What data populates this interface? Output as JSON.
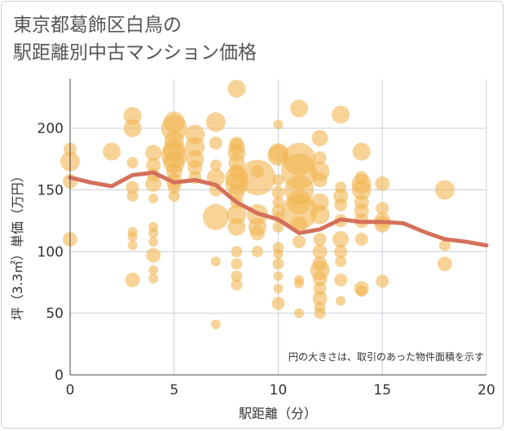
{
  "title": {
    "line1": "東京都葛飾区白鳥の",
    "line2": "駅距離別中古マンション価格"
  },
  "chart_data": {
    "type": "scatter",
    "xlabel": "駅距離（分）",
    "ylabel": "坪（3.3㎡）単価（万円）",
    "xlim": [
      0,
      20
    ],
    "ylim": [
      0,
      240
    ],
    "x_ticks": [
      0,
      5,
      10,
      15,
      20
    ],
    "y_ticks": [
      0,
      50,
      100,
      150,
      200
    ],
    "grid": true,
    "note": "円の大きさは、取引のあった物件面積を示す",
    "colors": {
      "bubble": "#f2b552",
      "line": "#d4705a",
      "grid": "#c9d1dc"
    },
    "bubbles": [
      {
        "x": 0,
        "y": 183,
        "r": 8
      },
      {
        "x": 0,
        "y": 173,
        "r": 12
      },
      {
        "x": 0,
        "y": 157,
        "r": 9
      },
      {
        "x": 0,
        "y": 110,
        "r": 9
      },
      {
        "x": 2,
        "y": 181,
        "r": 11
      },
      {
        "x": 3,
        "y": 210,
        "r": 11
      },
      {
        "x": 3,
        "y": 200,
        "r": 11
      },
      {
        "x": 3,
        "y": 172,
        "r": 7
      },
      {
        "x": 3,
        "y": 152,
        "r": 8
      },
      {
        "x": 3,
        "y": 145,
        "r": 7
      },
      {
        "x": 3,
        "y": 116,
        "r": 6
      },
      {
        "x": 3,
        "y": 112,
        "r": 6
      },
      {
        "x": 3,
        "y": 105,
        "r": 6
      },
      {
        "x": 3,
        "y": 77,
        "r": 9
      },
      {
        "x": 4,
        "y": 180,
        "r": 10
      },
      {
        "x": 4,
        "y": 170,
        "r": 9
      },
      {
        "x": 4,
        "y": 162,
        "r": 8
      },
      {
        "x": 4,
        "y": 155,
        "r": 10
      },
      {
        "x": 4,
        "y": 143,
        "r": 6
      },
      {
        "x": 4,
        "y": 120,
        "r": 6
      },
      {
        "x": 4,
        "y": 115,
        "r": 6
      },
      {
        "x": 4,
        "y": 108,
        "r": 6
      },
      {
        "x": 4,
        "y": 97,
        "r": 9
      },
      {
        "x": 4,
        "y": 85,
        "r": 6
      },
      {
        "x": 4,
        "y": 78,
        "r": 6
      },
      {
        "x": 5,
        "y": 205,
        "r": 13
      },
      {
        "x": 5,
        "y": 200,
        "r": 16
      },
      {
        "x": 5,
        "y": 190,
        "r": 12
      },
      {
        "x": 5,
        "y": 182,
        "r": 14
      },
      {
        "x": 5,
        "y": 178,
        "r": 16
      },
      {
        "x": 5,
        "y": 172,
        "r": 13
      },
      {
        "x": 5,
        "y": 165,
        "r": 10
      },
      {
        "x": 5,
        "y": 157,
        "r": 10
      },
      {
        "x": 5,
        "y": 152,
        "r": 8
      },
      {
        "x": 5,
        "y": 145,
        "r": 7
      },
      {
        "x": 6,
        "y": 195,
        "r": 12
      },
      {
        "x": 6,
        "y": 185,
        "r": 12
      },
      {
        "x": 6,
        "y": 175,
        "r": 11
      },
      {
        "x": 6,
        "y": 168,
        "r": 9
      },
      {
        "x": 6,
        "y": 160,
        "r": 8
      },
      {
        "x": 7,
        "y": 205,
        "r": 12
      },
      {
        "x": 7,
        "y": 188,
        "r": 8
      },
      {
        "x": 7,
        "y": 170,
        "r": 7
      },
      {
        "x": 7,
        "y": 160,
        "r": 11
      },
      {
        "x": 7,
        "y": 150,
        "r": 8
      },
      {
        "x": 7,
        "y": 128,
        "r": 16
      },
      {
        "x": 7,
        "y": 92,
        "r": 6
      },
      {
        "x": 7,
        "y": 41,
        "r": 6
      },
      {
        "x": 8,
        "y": 232,
        "r": 11
      },
      {
        "x": 8,
        "y": 188,
        "r": 8
      },
      {
        "x": 8,
        "y": 185,
        "r": 10
      },
      {
        "x": 8,
        "y": 180,
        "r": 11
      },
      {
        "x": 8,
        "y": 172,
        "r": 10
      },
      {
        "x": 8,
        "y": 165,
        "r": 9
      },
      {
        "x": 8,
        "y": 160,
        "r": 14
      },
      {
        "x": 8,
        "y": 155,
        "r": 14
      },
      {
        "x": 8,
        "y": 148,
        "r": 10
      },
      {
        "x": 8,
        "y": 140,
        "r": 8
      },
      {
        "x": 8,
        "y": 130,
        "r": 12
      },
      {
        "x": 8,
        "y": 120,
        "r": 11
      },
      {
        "x": 8,
        "y": 100,
        "r": 7
      },
      {
        "x": 8,
        "y": 90,
        "r": 7
      },
      {
        "x": 8,
        "y": 80,
        "r": 7
      },
      {
        "x": 8,
        "y": 73,
        "r": 7
      },
      {
        "x": 9,
        "y": 165,
        "r": 8
      },
      {
        "x": 9,
        "y": 160,
        "r": 22
      },
      {
        "x": 9,
        "y": 130,
        "r": 13
      },
      {
        "x": 9,
        "y": 120,
        "r": 11
      },
      {
        "x": 9,
        "y": 115,
        "r": 9
      },
      {
        "x": 9,
        "y": 100,
        "r": 7
      },
      {
        "x": 10,
        "y": 203,
        "r": 6
      },
      {
        "x": 10,
        "y": 180,
        "r": 12
      },
      {
        "x": 10,
        "y": 178,
        "r": 13
      },
      {
        "x": 10,
        "y": 158,
        "r": 7
      },
      {
        "x": 10,
        "y": 148,
        "r": 8
      },
      {
        "x": 10,
        "y": 140,
        "r": 7
      },
      {
        "x": 10,
        "y": 133,
        "r": 8
      },
      {
        "x": 10,
        "y": 128,
        "r": 7
      },
      {
        "x": 10,
        "y": 120,
        "r": 7
      },
      {
        "x": 10,
        "y": 103,
        "r": 7
      },
      {
        "x": 10,
        "y": 98,
        "r": 6
      },
      {
        "x": 10,
        "y": 90,
        "r": 7
      },
      {
        "x": 10,
        "y": 80,
        "r": 6
      },
      {
        "x": 10,
        "y": 70,
        "r": 6
      },
      {
        "x": 10,
        "y": 58,
        "r": 8
      },
      {
        "x": 11,
        "y": 216,
        "r": 11
      },
      {
        "x": 11,
        "y": 175,
        "r": 20
      },
      {
        "x": 11,
        "y": 165,
        "r": 22
      },
      {
        "x": 11,
        "y": 150,
        "r": 18
      },
      {
        "x": 11,
        "y": 140,
        "r": 15
      },
      {
        "x": 11,
        "y": 132,
        "r": 22
      },
      {
        "x": 11,
        "y": 122,
        "r": 10
      },
      {
        "x": 11,
        "y": 108,
        "r": 8
      },
      {
        "x": 11,
        "y": 77,
        "r": 6
      },
      {
        "x": 11,
        "y": 74,
        "r": 6
      },
      {
        "x": 11,
        "y": 50,
        "r": 6
      },
      {
        "x": 12,
        "y": 192,
        "r": 10
      },
      {
        "x": 12,
        "y": 176,
        "r": 8
      },
      {
        "x": 12,
        "y": 165,
        "r": 12
      },
      {
        "x": 12,
        "y": 158,
        "r": 9
      },
      {
        "x": 12,
        "y": 140,
        "r": 11
      },
      {
        "x": 12,
        "y": 130,
        "r": 12
      },
      {
        "x": 12,
        "y": 110,
        "r": 8
      },
      {
        "x": 12,
        "y": 100,
        "r": 9
      },
      {
        "x": 12,
        "y": 90,
        "r": 9
      },
      {
        "x": 12,
        "y": 85,
        "r": 12
      },
      {
        "x": 12,
        "y": 78,
        "r": 9
      },
      {
        "x": 12,
        "y": 70,
        "r": 8
      },
      {
        "x": 12,
        "y": 62,
        "r": 9
      },
      {
        "x": 12,
        "y": 55,
        "r": 7
      },
      {
        "x": 12,
        "y": 50,
        "r": 7
      },
      {
        "x": 13,
        "y": 211,
        "r": 11
      },
      {
        "x": 13,
        "y": 152,
        "r": 7
      },
      {
        "x": 13,
        "y": 145,
        "r": 9
      },
      {
        "x": 13,
        "y": 138,
        "r": 8
      },
      {
        "x": 13,
        "y": 125,
        "r": 8
      },
      {
        "x": 13,
        "y": 110,
        "r": 10
      },
      {
        "x": 13,
        "y": 100,
        "r": 8
      },
      {
        "x": 13,
        "y": 92,
        "r": 7
      },
      {
        "x": 13,
        "y": 77,
        "r": 8
      },
      {
        "x": 13,
        "y": 60,
        "r": 6
      },
      {
        "x": 14,
        "y": 181,
        "r": 11
      },
      {
        "x": 14,
        "y": 160,
        "r": 8
      },
      {
        "x": 14,
        "y": 155,
        "r": 12
      },
      {
        "x": 14,
        "y": 150,
        "r": 12
      },
      {
        "x": 14,
        "y": 140,
        "r": 9
      },
      {
        "x": 14,
        "y": 133,
        "r": 9
      },
      {
        "x": 14,
        "y": 125,
        "r": 9
      },
      {
        "x": 14,
        "y": 110,
        "r": 8
      },
      {
        "x": 14,
        "y": 70,
        "r": 9
      },
      {
        "x": 14,
        "y": 68,
        "r": 7
      },
      {
        "x": 15,
        "y": 155,
        "r": 9
      },
      {
        "x": 15,
        "y": 135,
        "r": 8
      },
      {
        "x": 15,
        "y": 125,
        "r": 10
      },
      {
        "x": 15,
        "y": 122,
        "r": 10
      },
      {
        "x": 15,
        "y": 76,
        "r": 8
      },
      {
        "x": 18,
        "y": 150,
        "r": 12
      },
      {
        "x": 18,
        "y": 105,
        "r": 7
      },
      {
        "x": 18,
        "y": 90,
        "r": 9
      }
    ],
    "line": {
      "x": [
        0,
        1,
        2,
        3,
        4,
        5,
        6,
        7,
        8,
        9,
        10,
        11,
        12,
        13,
        14,
        15,
        16,
        17,
        18,
        19,
        20
      ],
      "y": [
        160,
        156,
        153,
        162,
        164,
        156,
        158,
        154,
        140,
        131,
        126,
        115,
        118,
        126,
        124,
        124,
        123,
        116,
        110,
        108,
        105
      ]
    }
  }
}
